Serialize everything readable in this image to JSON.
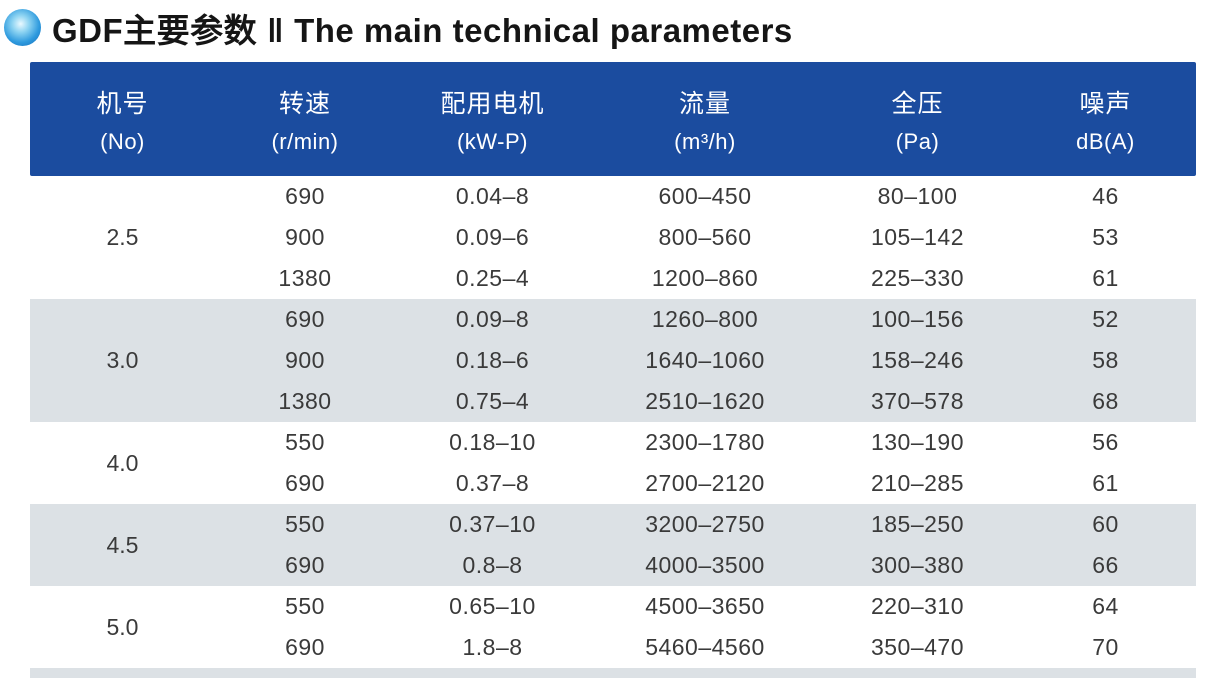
{
  "page": {
    "title_zh": "GDF主要参数",
    "separator": "‖",
    "title_en": "The main technical parameters"
  },
  "colors": {
    "header_blue": "#1b4c9f",
    "band_gray": "#dce1e5",
    "bullet_blue": "#2e9ade",
    "text_dark": "#3a3a3a"
  },
  "table": {
    "columns": [
      {
        "line1": "机号",
        "line2": "(No)"
      },
      {
        "line1": "转速",
        "line2": "(r/min)"
      },
      {
        "line1": "配用电机",
        "line2": "(kW-P)"
      },
      {
        "line1": "流量",
        "line2": "(m³/h)"
      },
      {
        "line1": "全压",
        "line2": "(Pa)"
      },
      {
        "line1": "噪声",
        "line2": "dB(A)"
      }
    ],
    "groups": [
      {
        "no": "2.5",
        "rows": [
          [
            "690",
            "0.04–8",
            "600–450",
            "80–100",
            "46"
          ],
          [
            "900",
            "0.09–6",
            "800–560",
            "105–142",
            "53"
          ],
          [
            "1380",
            "0.25–4",
            "1200–860",
            "225–330",
            "61"
          ]
        ]
      },
      {
        "no": "3.0",
        "rows": [
          [
            "690",
            "0.09–8",
            "1260–800",
            "100–156",
            "52"
          ],
          [
            "900",
            "0.18–6",
            "1640–1060",
            "158–246",
            "58"
          ],
          [
            "1380",
            "0.75–4",
            "2510–1620",
            "370–578",
            "68"
          ]
        ]
      },
      {
        "no": "4.0",
        "rows": [
          [
            "550",
            "0.18–10",
            "2300–1780",
            "130–190",
            "56"
          ],
          [
            "690",
            "0.37–8",
            "2700–2120",
            "210–285",
            "61"
          ]
        ]
      },
      {
        "no": "4.5",
        "rows": [
          [
            "550",
            "0.37–10",
            "3200–2750",
            "185–250",
            "60"
          ],
          [
            "690",
            "0.8–8",
            "4000–3500",
            "300–380",
            "66"
          ]
        ]
      },
      {
        "no": "5.0",
        "rows": [
          [
            "550",
            "0.65–10",
            "4500–3650",
            "220–310",
            "64"
          ],
          [
            "690",
            "1.8–8",
            "5460–4560",
            "350–470",
            "70"
          ]
        ]
      }
    ]
  }
}
